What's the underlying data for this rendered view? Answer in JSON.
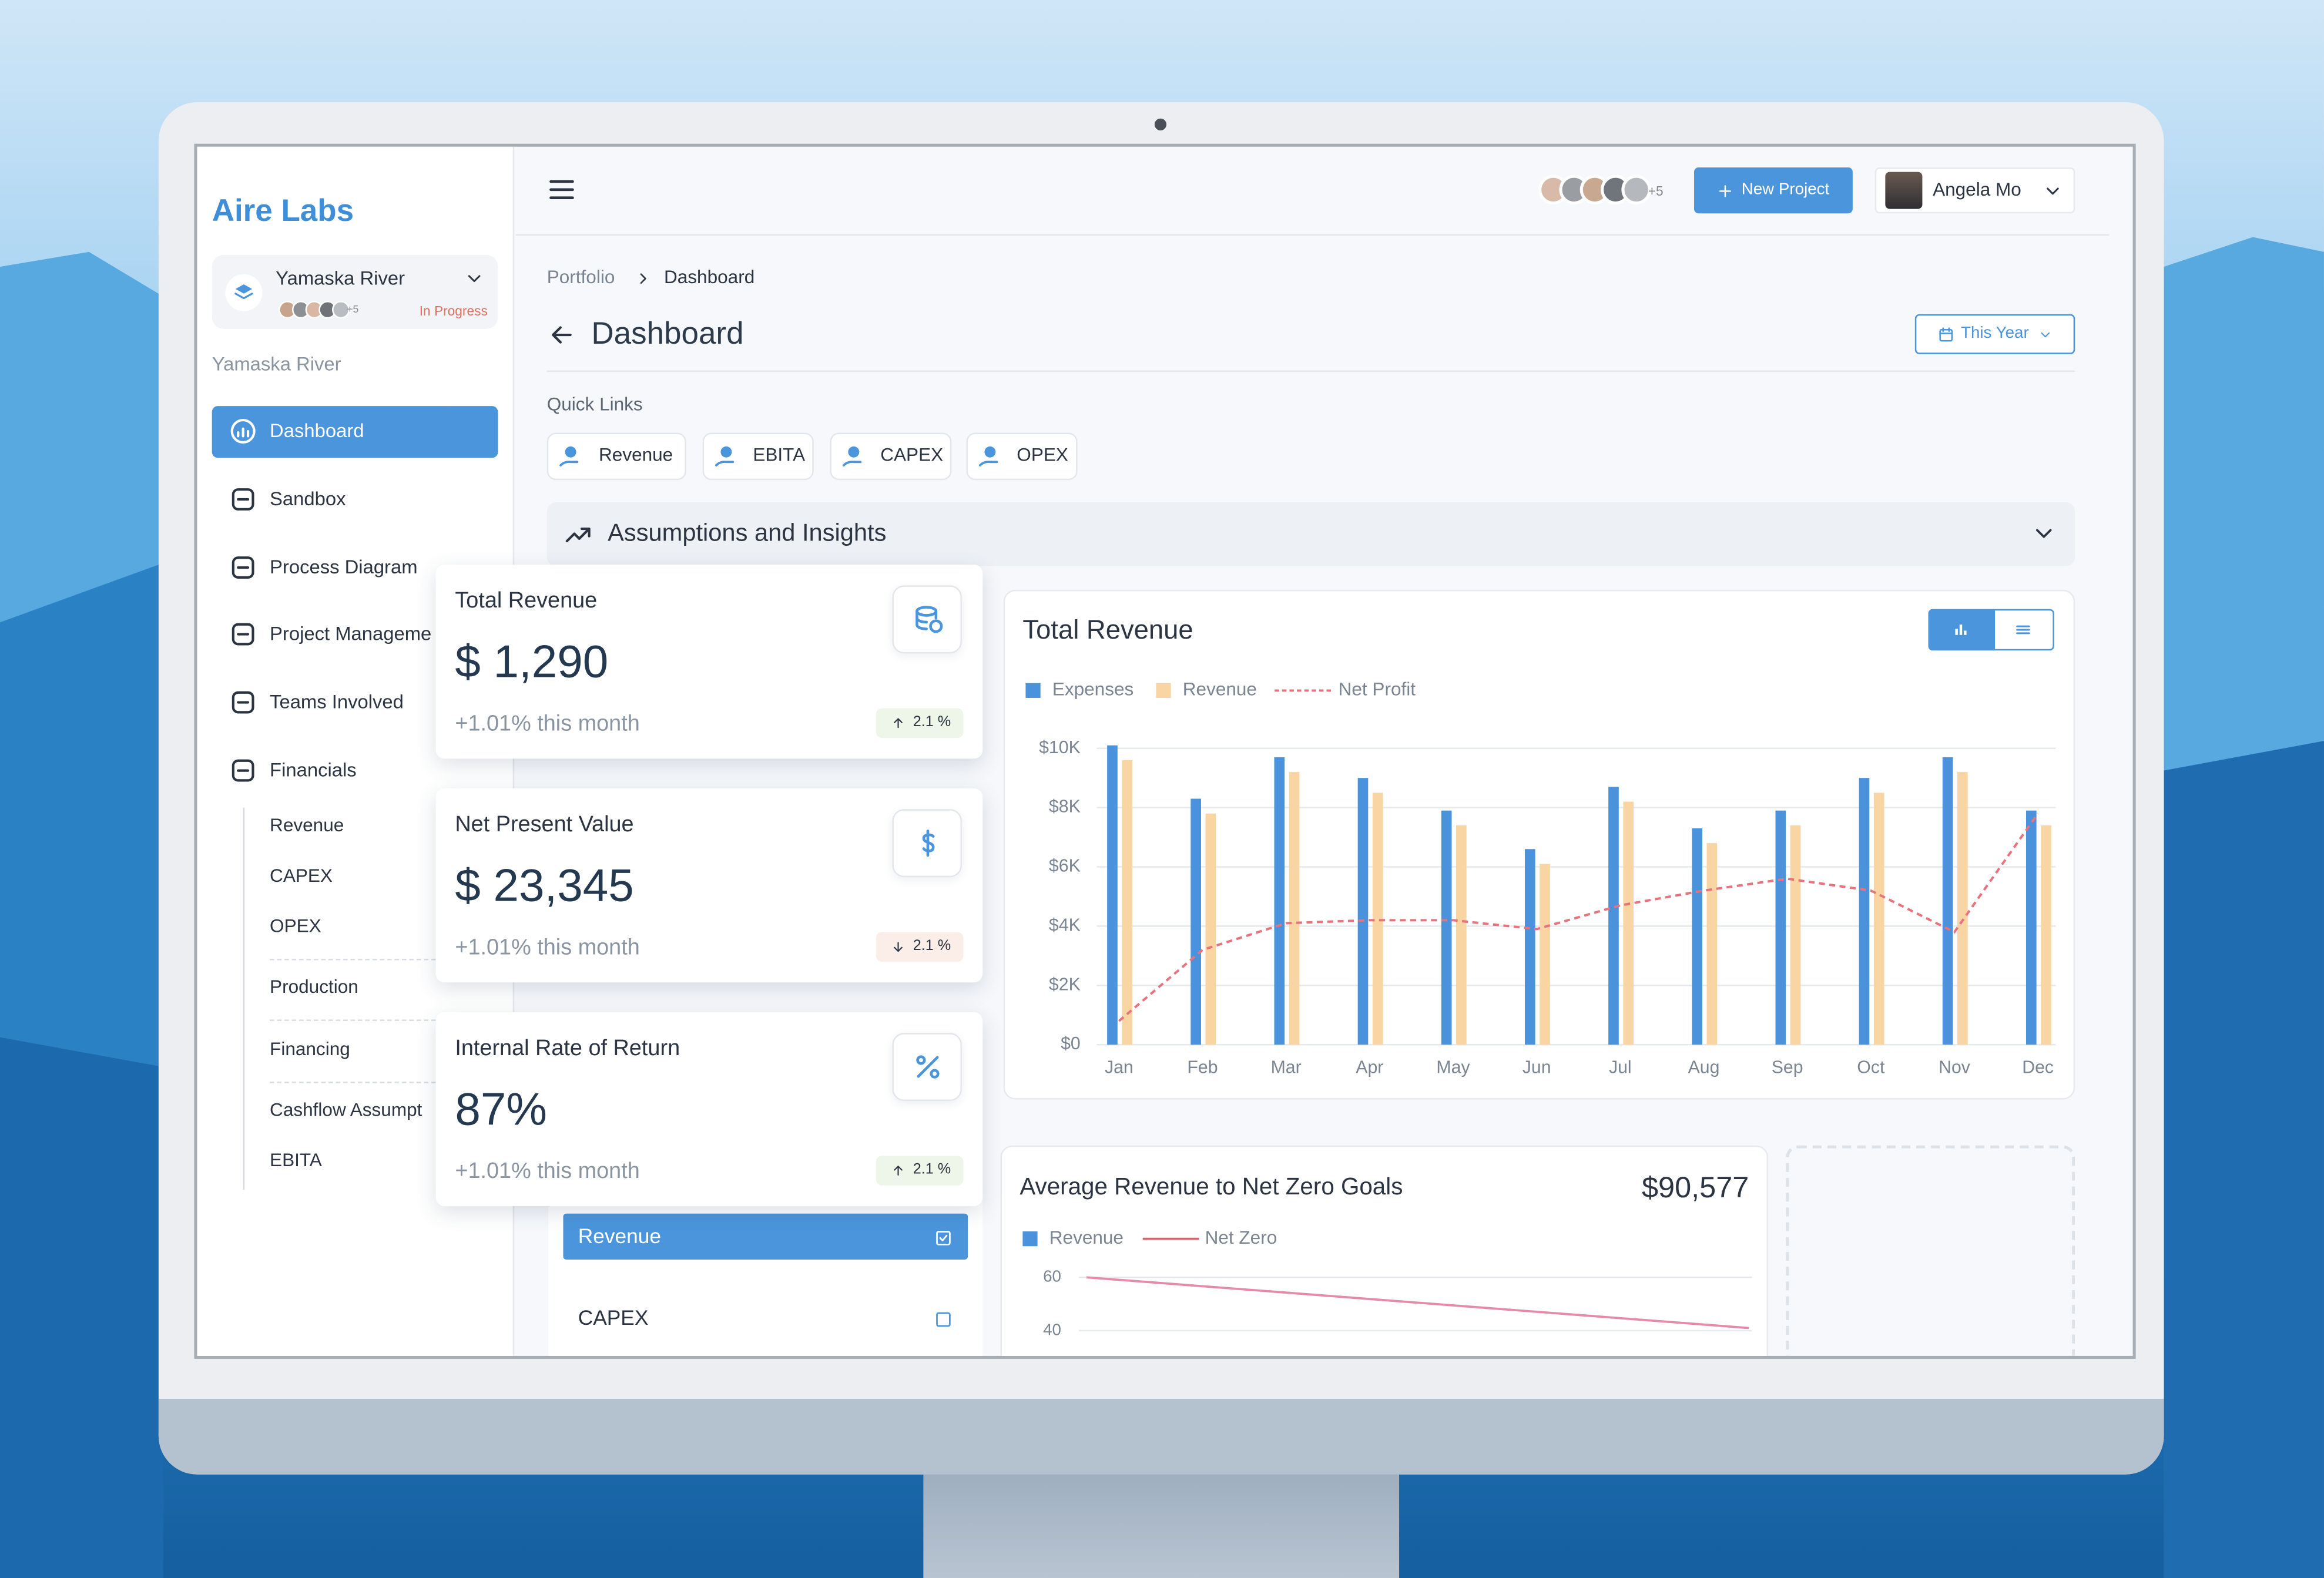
{
  "brand": "Aire Labs",
  "project": {
    "name": "Yamaska River",
    "members_more": "+5",
    "status": "In Progress"
  },
  "sidebar": {
    "section": "Yamaska River",
    "nav": [
      {
        "label": "Dashboard",
        "active": true
      },
      {
        "label": "Sandbox"
      },
      {
        "label": "Process Diagram"
      },
      {
        "label": "Project Manageme"
      },
      {
        "label": "Teams Involved"
      },
      {
        "label": "Financials"
      }
    ],
    "subnav": [
      "Revenue",
      "CAPEX",
      "OPEX",
      "Production",
      "Financing",
      "Cashflow Assumpt",
      "EBITA"
    ]
  },
  "header": {
    "members_more": "+5",
    "new_project": "New Project",
    "user": "Angela Mo"
  },
  "breadcrumb": [
    "Portfolio",
    "Dashboard"
  ],
  "page": {
    "title": "Dashboard",
    "period": "This Year"
  },
  "quick_links": {
    "title": "Quick Links",
    "items": [
      "Revenue",
      "EBITA",
      "CAPEX",
      "OPEX"
    ]
  },
  "assumptions": {
    "title": "Assumptions and Insights"
  },
  "kpis": [
    {
      "title": "Total Revenue",
      "value": "$ 1,290",
      "change": "+1.01% this month",
      "badge": "2.1 %",
      "trend": "up"
    },
    {
      "title": "Net Present Value",
      "value": "$ 23,345",
      "change": "+1.01% this month",
      "badge": "2.1 %",
      "trend": "down"
    },
    {
      "title": "Internal Rate of Return",
      "value": "87%",
      "change": "+1.01% this month",
      "badge": "2.1 %",
      "trend": "up"
    }
  ],
  "total_revenue_chart": {
    "type": "bar",
    "title": "Total Revenue",
    "categories": [
      "Jan",
      "Feb",
      "Mar",
      "Apr",
      "May",
      "Jun",
      "Jul",
      "Aug",
      "Sep",
      "Oct",
      "Nov",
      "Dec"
    ],
    "series": [
      {
        "name": "Expenses",
        "color": "#4a93dc",
        "values": [
          10100,
          8300,
          9700,
          9000,
          7900,
          6600,
          8700,
          7300,
          7900,
          9000,
          9700,
          7900
        ]
      },
      {
        "name": "Revenue",
        "color": "#f9d5a3",
        "values": [
          9600,
          7800,
          9200,
          8500,
          7400,
          6100,
          8200,
          6800,
          7400,
          8500,
          9200,
          7400
        ]
      },
      {
        "name": "Net Profit",
        "type": "line",
        "color": "#e8737c",
        "values": [
          800,
          3200,
          4100,
          4200,
          4200,
          3900,
          4700,
          5200,
          5600,
          5200,
          3800,
          7800
        ]
      }
    ],
    "ylim": [
      0,
      10000
    ],
    "yticks": [
      {
        "value": 0,
        "label": "$0"
      },
      {
        "value": 2000,
        "label": "$2K"
      },
      {
        "value": 4000,
        "label": "$4K"
      },
      {
        "value": 6000,
        "label": "$6K"
      },
      {
        "value": 8000,
        "label": "$8K"
      },
      {
        "value": 10000,
        "label": "$10K"
      }
    ],
    "grid": true
  },
  "net_zero_chart": {
    "type": "line",
    "title": "Average Revenue to Net Zero Goals",
    "total": "$90,577",
    "series": [
      {
        "name": "Revenue",
        "color": "#4a93dc",
        "values": []
      },
      {
        "name": "Net Zero",
        "color": "#e58aa8",
        "values": [
          60,
          41
        ]
      }
    ],
    "ylim": [
      40,
      60
    ],
    "yticks": [
      60,
      40
    ],
    "grid": true
  },
  "metric_list": [
    {
      "label": "Revenue",
      "checked": true
    },
    {
      "label": "CAPEX",
      "checked": false
    }
  ]
}
